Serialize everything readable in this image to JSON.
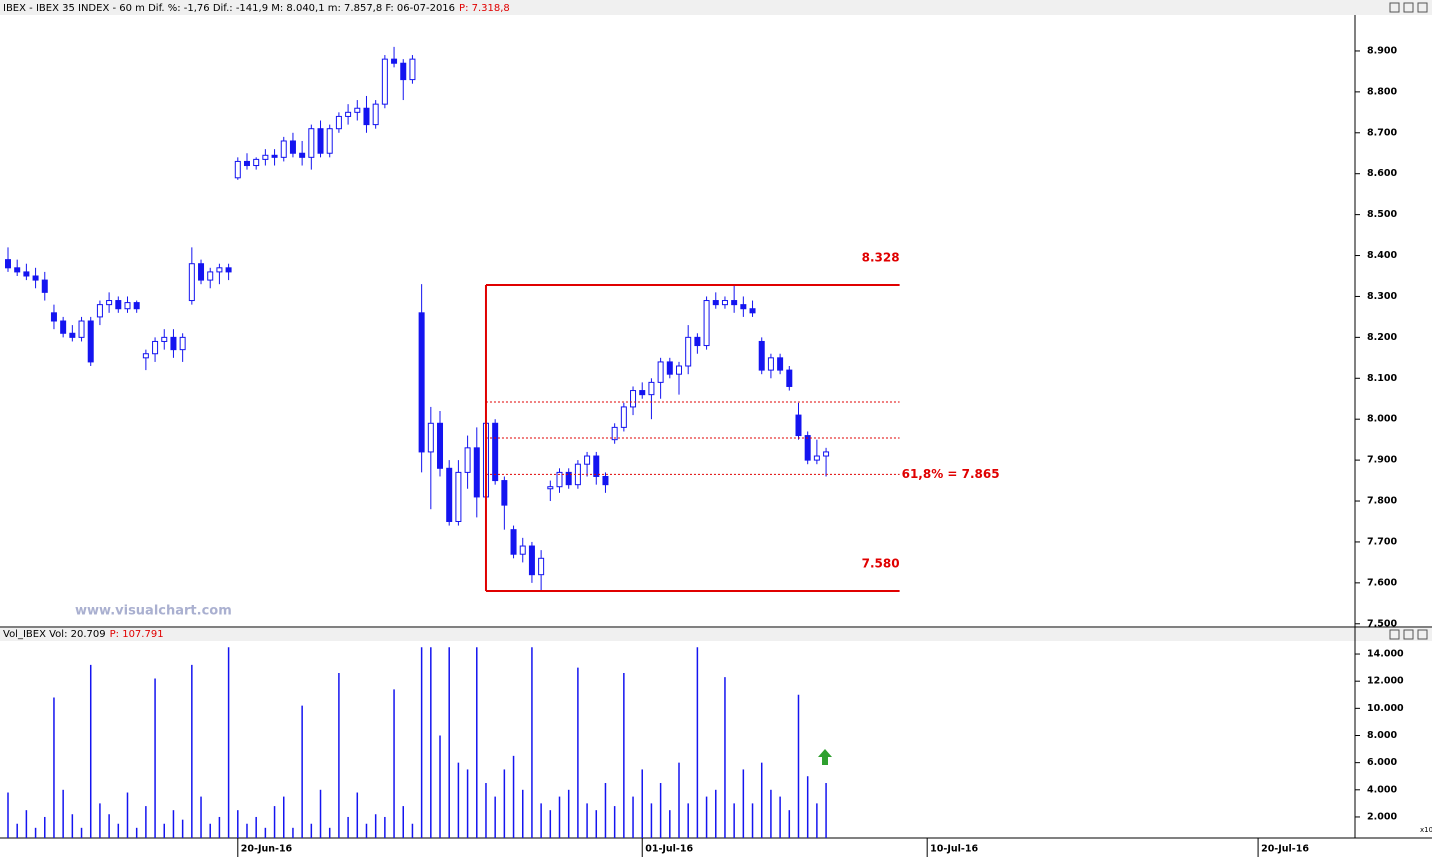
{
  "chart_data": [
    {
      "type": "candlestick",
      "title": "IBEX - IBEX 35 INDEX - 60 m  Dif. %: -1,76  Dif.: -141,9  M: 8.040,1  m: 7.857,8  F: 06-07-2016",
      "last": "P: 7.318,8",
      "watermark": "www.visualchart.com",
      "color": "#1414f0",
      "open": [
        8390,
        8370,
        8360,
        8350,
        8340,
        8260,
        8240,
        8210,
        8200,
        8240,
        8250,
        8280,
        8290,
        8270,
        8285,
        8150,
        8160,
        8190,
        8200,
        8170,
        8290,
        8380,
        8340,
        8360,
        8370,
        8590,
        8630,
        8620,
        8635,
        8645,
        8640,
        8680,
        8650,
        8640,
        8710,
        8650,
        8710,
        8740,
        8750,
        8760,
        8720,
        8770,
        8880,
        8870,
        8830,
        8260,
        7920,
        7990,
        7880,
        7750,
        7870,
        7930,
        7810,
        7990,
        7850,
        7730,
        7670,
        7690,
        7620,
        7830,
        7835,
        7870,
        7840,
        7890,
        7910,
        7860,
        7950,
        7980,
        8030,
        8070,
        8060,
        8090,
        8140,
        8110,
        8130,
        8200,
        8180,
        8290,
        8280,
        8290,
        8280,
        8270,
        8190,
        8120,
        8150,
        8120,
        8010,
        7960,
        7900,
        7910
      ],
      "high": [
        8420,
        8390,
        8380,
        8370,
        8360,
        8280,
        8250,
        8230,
        8250,
        8250,
        8290,
        8310,
        8300,
        8300,
        8290,
        8170,
        8200,
        8220,
        8220,
        8210,
        8420,
        8390,
        8370,
        8380,
        8380,
        8640,
        8650,
        8640,
        8660,
        8660,
        8690,
        8700,
        8680,
        8720,
        8730,
        8720,
        8750,
        8770,
        8780,
        8790,
        8780,
        8890,
        8910,
        8880,
        8890,
        8330,
        8030,
        8020,
        7900,
        7900,
        7960,
        7980,
        8040,
        8000,
        7860,
        7740,
        7710,
        7700,
        7680,
        7850,
        7880,
        7880,
        7900,
        7920,
        7920,
        7870,
        7990,
        8040,
        8080,
        8090,
        8100,
        8150,
        8150,
        8140,
        8230,
        8210,
        8300,
        8310,
        8300,
        8330,
        8300,
        8290,
        8200,
        8160,
        8160,
        8130,
        8040,
        7970,
        7950,
        7930
      ],
      "low": [
        8360,
        8350,
        8340,
        8320,
        8290,
        8220,
        8200,
        8190,
        8190,
        8130,
        8230,
        8260,
        8260,
        8260,
        8260,
        8120,
        8140,
        8170,
        8150,
        8140,
        8280,
        8330,
        8320,
        8330,
        8340,
        8585,
        8610,
        8610,
        8620,
        8620,
        8630,
        8640,
        8620,
        8610,
        8640,
        8640,
        8700,
        8720,
        8730,
        8700,
        8710,
        8760,
        8860,
        8780,
        8820,
        7870,
        7780,
        7860,
        7740,
        7740,
        7830,
        7760,
        7800,
        7840,
        7730,
        7660,
        7650,
        7600,
        7580,
        7800,
        7820,
        7830,
        7830,
        7860,
        7840,
        7820,
        7940,
        7970,
        8010,
        8050,
        8000,
        8050,
        8100,
        8060,
        8110,
        8160,
        8170,
        8270,
        8270,
        8260,
        8250,
        8250,
        8110,
        8100,
        8110,
        8070,
        7950,
        7890,
        7890,
        7860
      ],
      "close": [
        8370,
        8360,
        8350,
        8340,
        8310,
        8240,
        8210,
        8200,
        8240,
        8140,
        8280,
        8290,
        8270,
        8285,
        8270,
        8160,
        8190,
        8200,
        8170,
        8200,
        8380,
        8340,
        8360,
        8370,
        8360,
        8630,
        8620,
        8635,
        8645,
        8640,
        8680,
        8650,
        8640,
        8710,
        8650,
        8710,
        8740,
        8750,
        8760,
        8720,
        8770,
        8880,
        8870,
        8830,
        8880,
        7920,
        7990,
        7880,
        7750,
        7870,
        7930,
        7810,
        7990,
        7850,
        7790,
        7670,
        7690,
        7620,
        7660,
        7835,
        7870,
        7840,
        7890,
        7910,
        7860,
        7840,
        7980,
        8030,
        8070,
        8060,
        8090,
        8140,
        8110,
        8130,
        8200,
        8180,
        8290,
        8280,
        8290,
        8280,
        8270,
        8260,
        8120,
        8150,
        8120,
        8080,
        7960,
        7900,
        7910,
        7920
      ],
      "xlim": [
        0,
        146
      ],
      "xticks": [
        {
          "value": 25,
          "label": "20-Jun-16"
        },
        {
          "value": 69,
          "label": "01-Jul-16"
        },
        {
          "value": 100,
          "label": "10-Jul-16"
        },
        {
          "value": 136,
          "label": "20-Jul-16"
        }
      ],
      "ylim": [
        7497,
        8983
      ],
      "yticks": [
        {
          "value": 7500,
          "label": "7.500"
        },
        {
          "value": 7600,
          "label": "7.600"
        },
        {
          "value": 7700,
          "label": "7.700"
        },
        {
          "value": 7800,
          "label": "7.800"
        },
        {
          "value": 7900,
          "label": "7.900"
        },
        {
          "value": 8000,
          "label": "8.000"
        },
        {
          "value": 8100,
          "label": "8.100"
        },
        {
          "value": 8200,
          "label": "8.200"
        },
        {
          "value": 8300,
          "label": "8.300"
        },
        {
          "value": 8400,
          "label": "8.400"
        },
        {
          "value": 8500,
          "label": "8.500"
        },
        {
          "value": 8600,
          "label": "8.600"
        },
        {
          "value": 8700,
          "label": "8.700"
        },
        {
          "value": 8800,
          "label": "8.800"
        },
        {
          "value": 8900,
          "label": "8.900"
        }
      ],
      "box": {
        "x": [
          52,
          97
        ],
        "color": "#e00000"
      },
      "levels": [
        {
          "value": 8328,
          "label": "8.328",
          "style": "solid"
        },
        {
          "value": 8042,
          "style": "dotted"
        },
        {
          "value": 7954,
          "style": "dotted"
        },
        {
          "value": 7865,
          "label": "61,8% = 7.865",
          "style": "dotted"
        },
        {
          "value": 7580,
          "label": "7.580",
          "style": "solid"
        }
      ]
    },
    {
      "type": "bar",
      "title": "Vol_IBEX Vol: 20.709",
      "last": "P: 107.791",
      "multiplier": "x10",
      "color": "#1414f0",
      "values": [
        3800,
        1500,
        2500,
        1200,
        2000,
        10800,
        4000,
        2200,
        1200,
        13200,
        3000,
        2200,
        1500,
        3800,
        1200,
        2800,
        12200,
        1500,
        2500,
        1800,
        13200,
        3500,
        1500,
        2000,
        14500,
        2500,
        1500,
        2000,
        1200,
        2800,
        3500,
        1200,
        10200,
        1500,
        4000,
        1200,
        12600,
        2000,
        3800,
        1500,
        2200,
        2000,
        11400,
        2800,
        1500,
        14500,
        14500,
        8000,
        14500,
        6000,
        5500,
        14500,
        4500,
        3500,
        5500,
        6500,
        4000,
        14500,
        3000,
        2500,
        3500,
        4000,
        13000,
        3000,
        2500,
        4500,
        2800,
        12600,
        3500,
        5500,
        3000,
        4500,
        2500,
        6000,
        3000,
        14500,
        3500,
        4000,
        12300,
        3000,
        5500,
        3000,
        6000,
        4000,
        3500,
        2500,
        11000,
        5000,
        3000,
        4500
      ],
      "ylim": [
        450,
        14960
      ],
      "yticks": [
        {
          "value": 2000,
          "label": "2.000"
        },
        {
          "value": 4000,
          "label": "4.000"
        },
        {
          "value": 6000,
          "label": "6.000"
        },
        {
          "value": 8000,
          "label": "8.000"
        },
        {
          "value": 10000,
          "label": "10.000"
        },
        {
          "value": 12000,
          "label": "12.000"
        },
        {
          "value": 14000,
          "label": "14.000"
        }
      ]
    }
  ]
}
